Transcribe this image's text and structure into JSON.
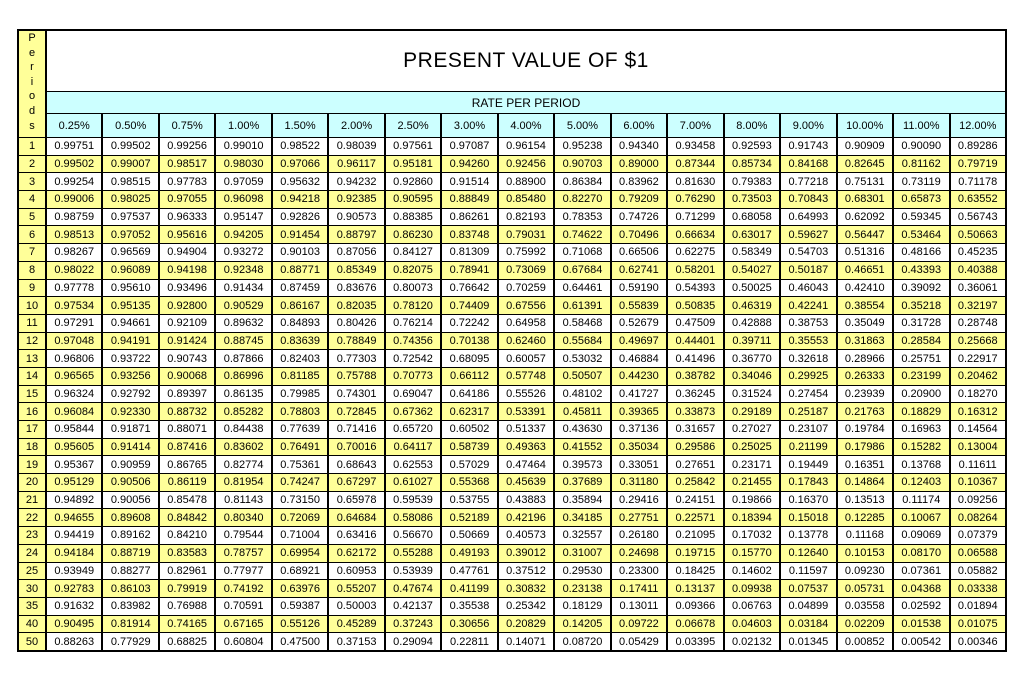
{
  "page": {
    "background": "#ffffff"
  },
  "colors": {
    "period_column": "#FFFF99",
    "header_band": "#CCFFFF",
    "row_alternate": "#FFFF99",
    "row_base": "#FFFFFF",
    "border": "#000000",
    "text": "#000000"
  },
  "chart_data": {
    "type": "table",
    "title": "PRESENT VALUE OF $1",
    "column_group_label": "RATE PER PERIOD",
    "row_group_label": "Periods",
    "columns": [
      "0.25%",
      "0.50%",
      "0.75%",
      "1.00%",
      "1.50%",
      "2.00%",
      "2.50%",
      "3.00%",
      "4.00%",
      "5.00%",
      "6.00%",
      "7.00%",
      "8.00%",
      "9.00%",
      "10.00%",
      "11.00%",
      "12.00%"
    ],
    "rows": [
      {
        "period": "1",
        "values": [
          "0.99751",
          "0.99502",
          "0.99256",
          "0.99010",
          "0.98522",
          "0.98039",
          "0.97561",
          "0.97087",
          "0.96154",
          "0.95238",
          "0.94340",
          "0.93458",
          "0.92593",
          "0.91743",
          "0.90909",
          "0.90090",
          "0.89286"
        ]
      },
      {
        "period": "2",
        "values": [
          "0.99502",
          "0.99007",
          "0.98517",
          "0.98030",
          "0.97066",
          "0.96117",
          "0.95181",
          "0.94260",
          "0.92456",
          "0.90703",
          "0.89000",
          "0.87344",
          "0.85734",
          "0.84168",
          "0.82645",
          "0.81162",
          "0.79719"
        ]
      },
      {
        "period": "3",
        "values": [
          "0.99254",
          "0.98515",
          "0.97783",
          "0.97059",
          "0.95632",
          "0.94232",
          "0.92860",
          "0.91514",
          "0.88900",
          "0.86384",
          "0.83962",
          "0.81630",
          "0.79383",
          "0.77218",
          "0.75131",
          "0.73119",
          "0.71178"
        ]
      },
      {
        "period": "4",
        "values": [
          "0.99006",
          "0.98025",
          "0.97055",
          "0.96098",
          "0.94218",
          "0.92385",
          "0.90595",
          "0.88849",
          "0.85480",
          "0.82270",
          "0.79209",
          "0.76290",
          "0.73503",
          "0.70843",
          "0.68301",
          "0.65873",
          "0.63552"
        ]
      },
      {
        "period": "5",
        "values": [
          "0.98759",
          "0.97537",
          "0.96333",
          "0.95147",
          "0.92826",
          "0.90573",
          "0.88385",
          "0.86261",
          "0.82193",
          "0.78353",
          "0.74726",
          "0.71299",
          "0.68058",
          "0.64993",
          "0.62092",
          "0.59345",
          "0.56743"
        ]
      },
      {
        "period": "6",
        "values": [
          "0.98513",
          "0.97052",
          "0.95616",
          "0.94205",
          "0.91454",
          "0.88797",
          "0.86230",
          "0.83748",
          "0.79031",
          "0.74622",
          "0.70496",
          "0.66634",
          "0.63017",
          "0.59627",
          "0.56447",
          "0.53464",
          "0.50663"
        ]
      },
      {
        "period": "7",
        "values": [
          "0.98267",
          "0.96569",
          "0.94904",
          "0.93272",
          "0.90103",
          "0.87056",
          "0.84127",
          "0.81309",
          "0.75992",
          "0.71068",
          "0.66506",
          "0.62275",
          "0.58349",
          "0.54703",
          "0.51316",
          "0.48166",
          "0.45235"
        ]
      },
      {
        "period": "8",
        "values": [
          "0.98022",
          "0.96089",
          "0.94198",
          "0.92348",
          "0.88771",
          "0.85349",
          "0.82075",
          "0.78941",
          "0.73069",
          "0.67684",
          "0.62741",
          "0.58201",
          "0.54027",
          "0.50187",
          "0.46651",
          "0.43393",
          "0.40388"
        ]
      },
      {
        "period": "9",
        "values": [
          "0.97778",
          "0.95610",
          "0.93496",
          "0.91434",
          "0.87459",
          "0.83676",
          "0.80073",
          "0.76642",
          "0.70259",
          "0.64461",
          "0.59190",
          "0.54393",
          "0.50025",
          "0.46043",
          "0.42410",
          "0.39092",
          "0.36061"
        ]
      },
      {
        "period": "10",
        "values": [
          "0.97534",
          "0.95135",
          "0.92800",
          "0.90529",
          "0.86167",
          "0.82035",
          "0.78120",
          "0.74409",
          "0.67556",
          "0.61391",
          "0.55839",
          "0.50835",
          "0.46319",
          "0.42241",
          "0.38554",
          "0.35218",
          "0.32197"
        ]
      },
      {
        "period": "11",
        "values": [
          "0.97291",
          "0.94661",
          "0.92109",
          "0.89632",
          "0.84893",
          "0.80426",
          "0.76214",
          "0.72242",
          "0.64958",
          "0.58468",
          "0.52679",
          "0.47509",
          "0.42888",
          "0.38753",
          "0.35049",
          "0.31728",
          "0.28748"
        ]
      },
      {
        "period": "12",
        "values": [
          "0.97048",
          "0.94191",
          "0.91424",
          "0.88745",
          "0.83639",
          "0.78849",
          "0.74356",
          "0.70138",
          "0.62460",
          "0.55684",
          "0.49697",
          "0.44401",
          "0.39711",
          "0.35553",
          "0.31863",
          "0.28584",
          "0.25668"
        ]
      },
      {
        "period": "13",
        "values": [
          "0.96806",
          "0.93722",
          "0.90743",
          "0.87866",
          "0.82403",
          "0.77303",
          "0.72542",
          "0.68095",
          "0.60057",
          "0.53032",
          "0.46884",
          "0.41496",
          "0.36770",
          "0.32618",
          "0.28966",
          "0.25751",
          "0.22917"
        ]
      },
      {
        "period": "14",
        "values": [
          "0.96565",
          "0.93256",
          "0.90068",
          "0.86996",
          "0.81185",
          "0.75788",
          "0.70773",
          "0.66112",
          "0.57748",
          "0.50507",
          "0.44230",
          "0.38782",
          "0.34046",
          "0.29925",
          "0.26333",
          "0.23199",
          "0.20462"
        ]
      },
      {
        "period": "15",
        "values": [
          "0.96324",
          "0.92792",
          "0.89397",
          "0.86135",
          "0.79985",
          "0.74301",
          "0.69047",
          "0.64186",
          "0.55526",
          "0.48102",
          "0.41727",
          "0.36245",
          "0.31524",
          "0.27454",
          "0.23939",
          "0.20900",
          "0.18270"
        ]
      },
      {
        "period": "16",
        "values": [
          "0.96084",
          "0.92330",
          "0.88732",
          "0.85282",
          "0.78803",
          "0.72845",
          "0.67362",
          "0.62317",
          "0.53391",
          "0.45811",
          "0.39365",
          "0.33873",
          "0.29189",
          "0.25187",
          "0.21763",
          "0.18829",
          "0.16312"
        ]
      },
      {
        "period": "17",
        "values": [
          "0.95844",
          "0.91871",
          "0.88071",
          "0.84438",
          "0.77639",
          "0.71416",
          "0.65720",
          "0.60502",
          "0.51337",
          "0.43630",
          "0.37136",
          "0.31657",
          "0.27027",
          "0.23107",
          "0.19784",
          "0.16963",
          "0.14564"
        ]
      },
      {
        "period": "18",
        "values": [
          "0.95605",
          "0.91414",
          "0.87416",
          "0.83602",
          "0.76491",
          "0.70016",
          "0.64117",
          "0.58739",
          "0.49363",
          "0.41552",
          "0.35034",
          "0.29586",
          "0.25025",
          "0.21199",
          "0.17986",
          "0.15282",
          "0.13004"
        ]
      },
      {
        "period": "19",
        "values": [
          "0.95367",
          "0.90959",
          "0.86765",
          "0.82774",
          "0.75361",
          "0.68643",
          "0.62553",
          "0.57029",
          "0.47464",
          "0.39573",
          "0.33051",
          "0.27651",
          "0.23171",
          "0.19449",
          "0.16351",
          "0.13768",
          "0.11611"
        ]
      },
      {
        "period": "20",
        "values": [
          "0.95129",
          "0.90506",
          "0.86119",
          "0.81954",
          "0.74247",
          "0.67297",
          "0.61027",
          "0.55368",
          "0.45639",
          "0.37689",
          "0.31180",
          "0.25842",
          "0.21455",
          "0.17843",
          "0.14864",
          "0.12403",
          "0.10367"
        ]
      },
      {
        "period": "21",
        "values": [
          "0.94892",
          "0.90056",
          "0.85478",
          "0.81143",
          "0.73150",
          "0.65978",
          "0.59539",
          "0.53755",
          "0.43883",
          "0.35894",
          "0.29416",
          "0.24151",
          "0.19866",
          "0.16370",
          "0.13513",
          "0.11174",
          "0.09256"
        ]
      },
      {
        "period": "22",
        "values": [
          "0.94655",
          "0.89608",
          "0.84842",
          "0.80340",
          "0.72069",
          "0.64684",
          "0.58086",
          "0.52189",
          "0.42196",
          "0.34185",
          "0.27751",
          "0.22571",
          "0.18394",
          "0.15018",
          "0.12285",
          "0.10067",
          "0.08264"
        ]
      },
      {
        "period": "23",
        "values": [
          "0.94419",
          "0.89162",
          "0.84210",
          "0.79544",
          "0.71004",
          "0.63416",
          "0.56670",
          "0.50669",
          "0.40573",
          "0.32557",
          "0.26180",
          "0.21095",
          "0.17032",
          "0.13778",
          "0.11168",
          "0.09069",
          "0.07379"
        ]
      },
      {
        "period": "24",
        "values": [
          "0.94184",
          "0.88719",
          "0.83583",
          "0.78757",
          "0.69954",
          "0.62172",
          "0.55288",
          "0.49193",
          "0.39012",
          "0.31007",
          "0.24698",
          "0.19715",
          "0.15770",
          "0.12640",
          "0.10153",
          "0.08170",
          "0.06588"
        ]
      },
      {
        "period": "25",
        "values": [
          "0.93949",
          "0.88277",
          "0.82961",
          "0.77977",
          "0.68921",
          "0.60953",
          "0.53939",
          "0.47761",
          "0.37512",
          "0.29530",
          "0.23300",
          "0.18425",
          "0.14602",
          "0.11597",
          "0.09230",
          "0.07361",
          "0.05882"
        ]
      },
      {
        "period": "30",
        "values": [
          "0.92783",
          "0.86103",
          "0.79919",
          "0.74192",
          "0.63976",
          "0.55207",
          "0.47674",
          "0.41199",
          "0.30832",
          "0.23138",
          "0.17411",
          "0.13137",
          "0.09938",
          "0.07537",
          "0.05731",
          "0.04368",
          "0.03338"
        ]
      },
      {
        "period": "35",
        "values": [
          "0.91632",
          "0.83982",
          "0.76988",
          "0.70591",
          "0.59387",
          "0.50003",
          "0.42137",
          "0.35538",
          "0.25342",
          "0.18129",
          "0.13011",
          "0.09366",
          "0.06763",
          "0.04899",
          "0.03558",
          "0.02592",
          "0.01894"
        ]
      },
      {
        "period": "40",
        "values": [
          "0.90495",
          "0.81914",
          "0.74165",
          "0.67165",
          "0.55126",
          "0.45289",
          "0.37243",
          "0.30656",
          "0.20829",
          "0.14205",
          "0.09722",
          "0.06678",
          "0.04603",
          "0.03184",
          "0.02209",
          "0.01538",
          "0.01075"
        ]
      },
      {
        "period": "50",
        "values": [
          "0.88263",
          "0.77929",
          "0.68825",
          "0.60804",
          "0.47500",
          "0.37153",
          "0.29094",
          "0.22811",
          "0.14071",
          "0.08720",
          "0.05429",
          "0.03395",
          "0.02132",
          "0.01345",
          "0.00852",
          "0.00542",
          "0.00346"
        ]
      }
    ]
  }
}
